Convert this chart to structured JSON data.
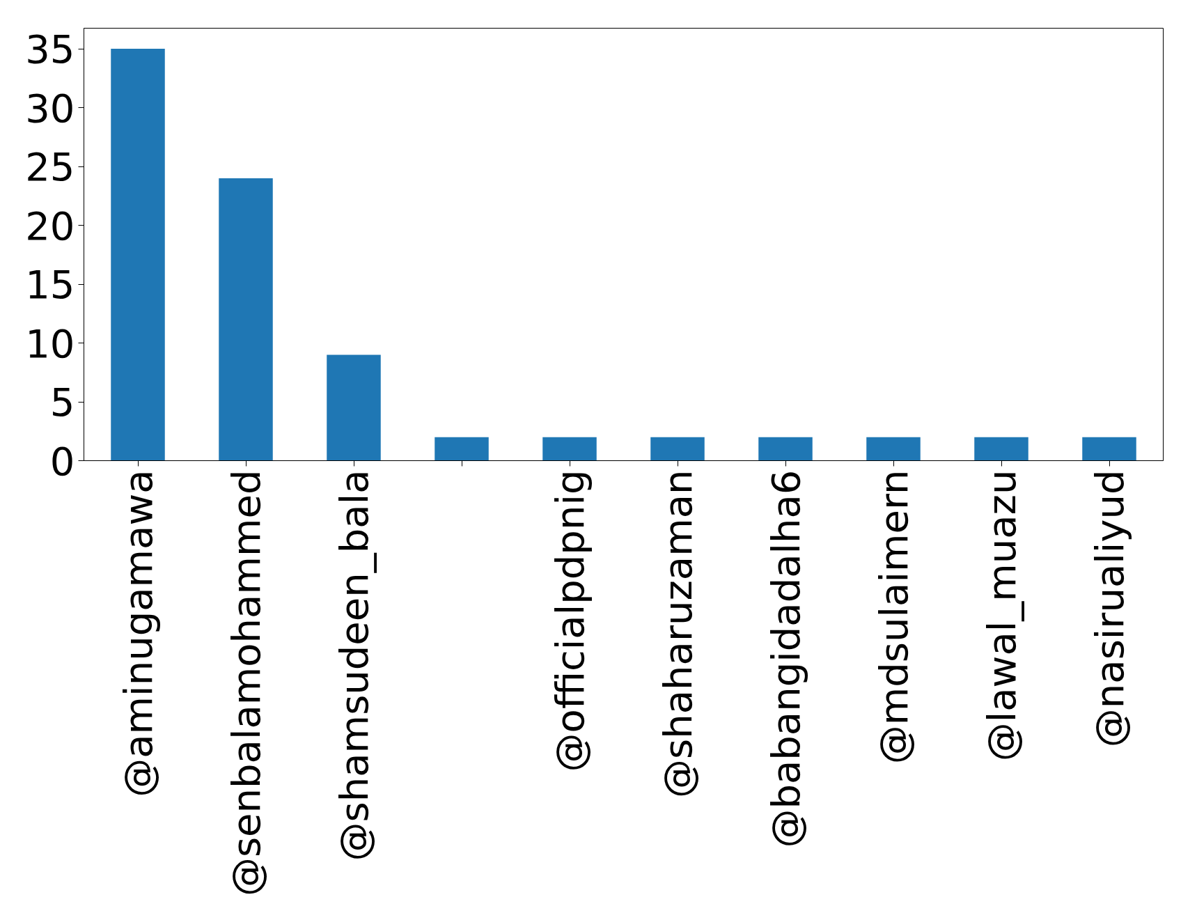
{
  "chart_data": {
    "type": "bar",
    "categories": [
      "@aminugamawa",
      "@senbalamohammed",
      "@shamsudeen_bala",
      null,
      "@officialpdpnig",
      "@shaharuzaman",
      "@babangidadalha6",
      "@mdsulaimern",
      "@lawal_muazu",
      "@nasirualiyud"
    ],
    "values": [
      35,
      24,
      9,
      2,
      2,
      2,
      2,
      2,
      2,
      2
    ],
    "color": "#1f77b4",
    "ylim": [
      0,
      36.75
    ],
    "yticks": [
      0,
      5,
      10,
      15,
      20,
      25,
      30,
      35
    ],
    "grid": false
  }
}
